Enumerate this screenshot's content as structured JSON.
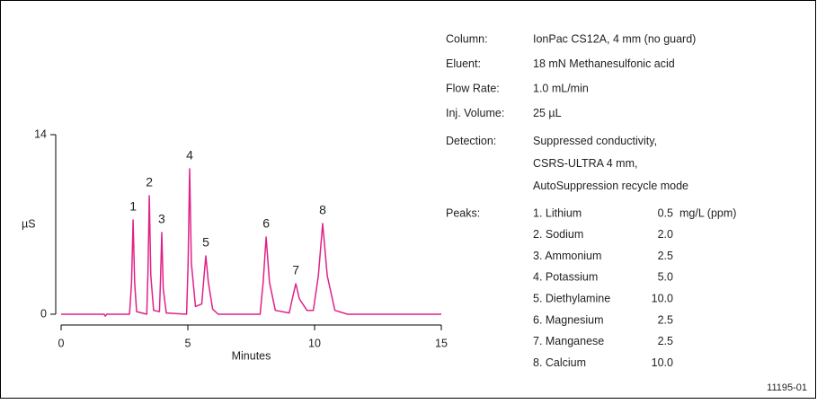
{
  "chart_data": {
    "type": "line",
    "xlabel": "Minutes",
    "ylabel": "µS",
    "color": "#e0218a",
    "x": [
      0,
      1.7,
      1.74,
      1.8,
      2.7,
      2.78,
      2.84,
      2.9,
      2.98,
      3.38,
      3.43,
      3.48,
      3.54,
      3.65,
      3.88,
      3.92,
      3.97,
      4.03,
      4.15,
      4.95,
      5.01,
      5.07,
      5.14,
      5.3,
      5.55,
      5.63,
      5.71,
      5.81,
      5.98,
      6.2,
      7.85,
      7.97,
      8.09,
      8.22,
      8.45,
      9.0,
      9.12,
      9.26,
      9.4,
      9.7,
      9.95,
      10.15,
      10.32,
      10.5,
      10.8,
      11.3,
      15
    ],
    "values": [
      0,
      0,
      -0.15,
      0,
      0,
      2.5,
      7.35,
      2.5,
      0.2,
      0,
      3.5,
      9.24,
      3,
      0.3,
      0.2,
      2.5,
      6.37,
      2,
      0.1,
      0,
      4,
      11.34,
      4,
      0.6,
      0.8,
      2.8,
      4.55,
      2.5,
      0.4,
      0,
      0,
      2.5,
      6.02,
      2.5,
      0.3,
      0.1,
      1.2,
      2.38,
      1.2,
      0.3,
      0.3,
      3,
      7.07,
      3,
      0.3,
      0,
      0
    ],
    "peak_labels": [
      "1",
      "2",
      "3",
      "4",
      "5",
      "6",
      "7",
      "8"
    ],
    "xlim": [
      0,
      15
    ],
    "xticks": [
      0,
      5,
      10,
      15
    ],
    "ylim": [
      0,
      14
    ],
    "yticks": [
      0,
      14
    ]
  },
  "conditions": [
    {
      "label": "Column:",
      "value": [
        "IonPac CS12A, 4 mm (no guard)"
      ]
    },
    {
      "label": "Eluent:",
      "value": [
        "18 mN Methanesulfonic acid"
      ]
    },
    {
      "label": "Flow Rate:",
      "value": [
        "1.0 mL/min"
      ]
    },
    {
      "label": "Inj. Volume:",
      "value": [
        "25 µL"
      ]
    },
    {
      "label": "Detection:",
      "value": [
        "Suppressed conductivity,",
        "CSRS-ULTRA 4 mm,",
        "AutoSuppression recycle mode"
      ]
    }
  ],
  "peaks": {
    "label": "Peaks:",
    "unit": "mg/L (ppm)",
    "items": [
      {
        "name": "1. Lithium",
        "amount": "0.5"
      },
      {
        "name": "2. Sodium",
        "amount": "2.0"
      },
      {
        "name": "3. Ammonium",
        "amount": "2.5"
      },
      {
        "name": "4. Potassium",
        "amount": "5.0"
      },
      {
        "name": "5. Diethylamine",
        "amount": "10.0"
      },
      {
        "name": "6. Magnesium",
        "amount": "2.5"
      },
      {
        "name": "7. Manganese",
        "amount": "2.5"
      },
      {
        "name": "8. Calcium",
        "amount": "10.0"
      }
    ]
  },
  "figure_id": "11195-01"
}
